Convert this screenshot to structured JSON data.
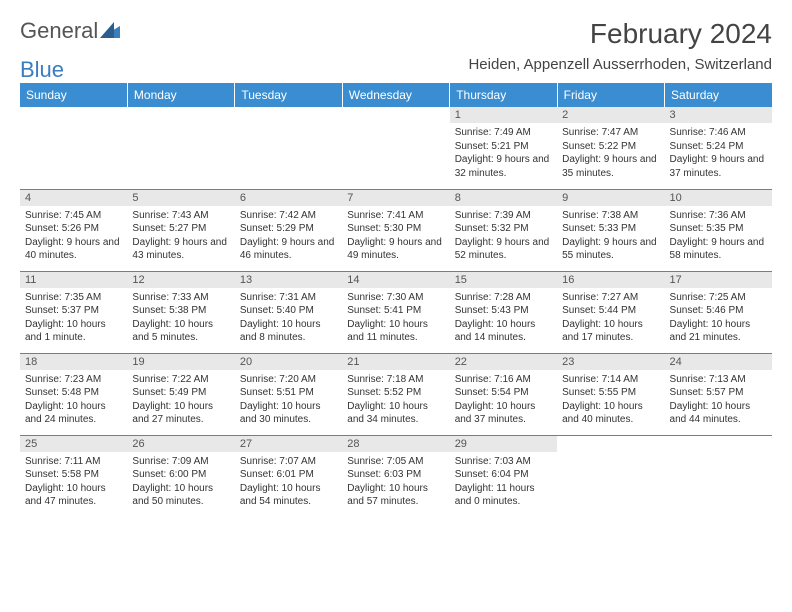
{
  "logo": {
    "text1": "General",
    "text2": "Blue"
  },
  "title": "February 2024",
  "location": "Heiden, Appenzell Ausserrhoden, Switzerland",
  "columns": [
    "Sunday",
    "Monday",
    "Tuesday",
    "Wednesday",
    "Thursday",
    "Friday",
    "Saturday"
  ],
  "colors": {
    "header_bg": "#3a8dd0",
    "header_text": "#ffffff",
    "daynum_bg": "#e8e8e8",
    "border": "#3a8dd0",
    "text": "#333333",
    "logo_blue": "#3a7ebf"
  },
  "weeks": [
    [
      {
        "num": "",
        "lines": []
      },
      {
        "num": "",
        "lines": []
      },
      {
        "num": "",
        "lines": []
      },
      {
        "num": "",
        "lines": []
      },
      {
        "num": "1",
        "lines": [
          "Sunrise: 7:49 AM",
          "Sunset: 5:21 PM",
          "Daylight: 9 hours and 32 minutes."
        ]
      },
      {
        "num": "2",
        "lines": [
          "Sunrise: 7:47 AM",
          "Sunset: 5:22 PM",
          "Daylight: 9 hours and 35 minutes."
        ]
      },
      {
        "num": "3",
        "lines": [
          "Sunrise: 7:46 AM",
          "Sunset: 5:24 PM",
          "Daylight: 9 hours and 37 minutes."
        ]
      }
    ],
    [
      {
        "num": "4",
        "lines": [
          "Sunrise: 7:45 AM",
          "Sunset: 5:26 PM",
          "Daylight: 9 hours and 40 minutes."
        ]
      },
      {
        "num": "5",
        "lines": [
          "Sunrise: 7:43 AM",
          "Sunset: 5:27 PM",
          "Daylight: 9 hours and 43 minutes."
        ]
      },
      {
        "num": "6",
        "lines": [
          "Sunrise: 7:42 AM",
          "Sunset: 5:29 PM",
          "Daylight: 9 hours and 46 minutes."
        ]
      },
      {
        "num": "7",
        "lines": [
          "Sunrise: 7:41 AM",
          "Sunset: 5:30 PM",
          "Daylight: 9 hours and 49 minutes."
        ]
      },
      {
        "num": "8",
        "lines": [
          "Sunrise: 7:39 AM",
          "Sunset: 5:32 PM",
          "Daylight: 9 hours and 52 minutes."
        ]
      },
      {
        "num": "9",
        "lines": [
          "Sunrise: 7:38 AM",
          "Sunset: 5:33 PM",
          "Daylight: 9 hours and 55 minutes."
        ]
      },
      {
        "num": "10",
        "lines": [
          "Sunrise: 7:36 AM",
          "Sunset: 5:35 PM",
          "Daylight: 9 hours and 58 minutes."
        ]
      }
    ],
    [
      {
        "num": "11",
        "lines": [
          "Sunrise: 7:35 AM",
          "Sunset: 5:37 PM",
          "Daylight: 10 hours and 1 minute."
        ]
      },
      {
        "num": "12",
        "lines": [
          "Sunrise: 7:33 AM",
          "Sunset: 5:38 PM",
          "Daylight: 10 hours and 5 minutes."
        ]
      },
      {
        "num": "13",
        "lines": [
          "Sunrise: 7:31 AM",
          "Sunset: 5:40 PM",
          "Daylight: 10 hours and 8 minutes."
        ]
      },
      {
        "num": "14",
        "lines": [
          "Sunrise: 7:30 AM",
          "Sunset: 5:41 PM",
          "Daylight: 10 hours and 11 minutes."
        ]
      },
      {
        "num": "15",
        "lines": [
          "Sunrise: 7:28 AM",
          "Sunset: 5:43 PM",
          "Daylight: 10 hours and 14 minutes."
        ]
      },
      {
        "num": "16",
        "lines": [
          "Sunrise: 7:27 AM",
          "Sunset: 5:44 PM",
          "Daylight: 10 hours and 17 minutes."
        ]
      },
      {
        "num": "17",
        "lines": [
          "Sunrise: 7:25 AM",
          "Sunset: 5:46 PM",
          "Daylight: 10 hours and 21 minutes."
        ]
      }
    ],
    [
      {
        "num": "18",
        "lines": [
          "Sunrise: 7:23 AM",
          "Sunset: 5:48 PM",
          "Daylight: 10 hours and 24 minutes."
        ]
      },
      {
        "num": "19",
        "lines": [
          "Sunrise: 7:22 AM",
          "Sunset: 5:49 PM",
          "Daylight: 10 hours and 27 minutes."
        ]
      },
      {
        "num": "20",
        "lines": [
          "Sunrise: 7:20 AM",
          "Sunset: 5:51 PM",
          "Daylight: 10 hours and 30 minutes."
        ]
      },
      {
        "num": "21",
        "lines": [
          "Sunrise: 7:18 AM",
          "Sunset: 5:52 PM",
          "Daylight: 10 hours and 34 minutes."
        ]
      },
      {
        "num": "22",
        "lines": [
          "Sunrise: 7:16 AM",
          "Sunset: 5:54 PM",
          "Daylight: 10 hours and 37 minutes."
        ]
      },
      {
        "num": "23",
        "lines": [
          "Sunrise: 7:14 AM",
          "Sunset: 5:55 PM",
          "Daylight: 10 hours and 40 minutes."
        ]
      },
      {
        "num": "24",
        "lines": [
          "Sunrise: 7:13 AM",
          "Sunset: 5:57 PM",
          "Daylight: 10 hours and 44 minutes."
        ]
      }
    ],
    [
      {
        "num": "25",
        "lines": [
          "Sunrise: 7:11 AM",
          "Sunset: 5:58 PM",
          "Daylight: 10 hours and 47 minutes."
        ]
      },
      {
        "num": "26",
        "lines": [
          "Sunrise: 7:09 AM",
          "Sunset: 6:00 PM",
          "Daylight: 10 hours and 50 minutes."
        ]
      },
      {
        "num": "27",
        "lines": [
          "Sunrise: 7:07 AM",
          "Sunset: 6:01 PM",
          "Daylight: 10 hours and 54 minutes."
        ]
      },
      {
        "num": "28",
        "lines": [
          "Sunrise: 7:05 AM",
          "Sunset: 6:03 PM",
          "Daylight: 10 hours and 57 minutes."
        ]
      },
      {
        "num": "29",
        "lines": [
          "Sunrise: 7:03 AM",
          "Sunset: 6:04 PM",
          "Daylight: 11 hours and 0 minutes."
        ]
      },
      {
        "num": "",
        "lines": []
      },
      {
        "num": "",
        "lines": []
      }
    ]
  ]
}
